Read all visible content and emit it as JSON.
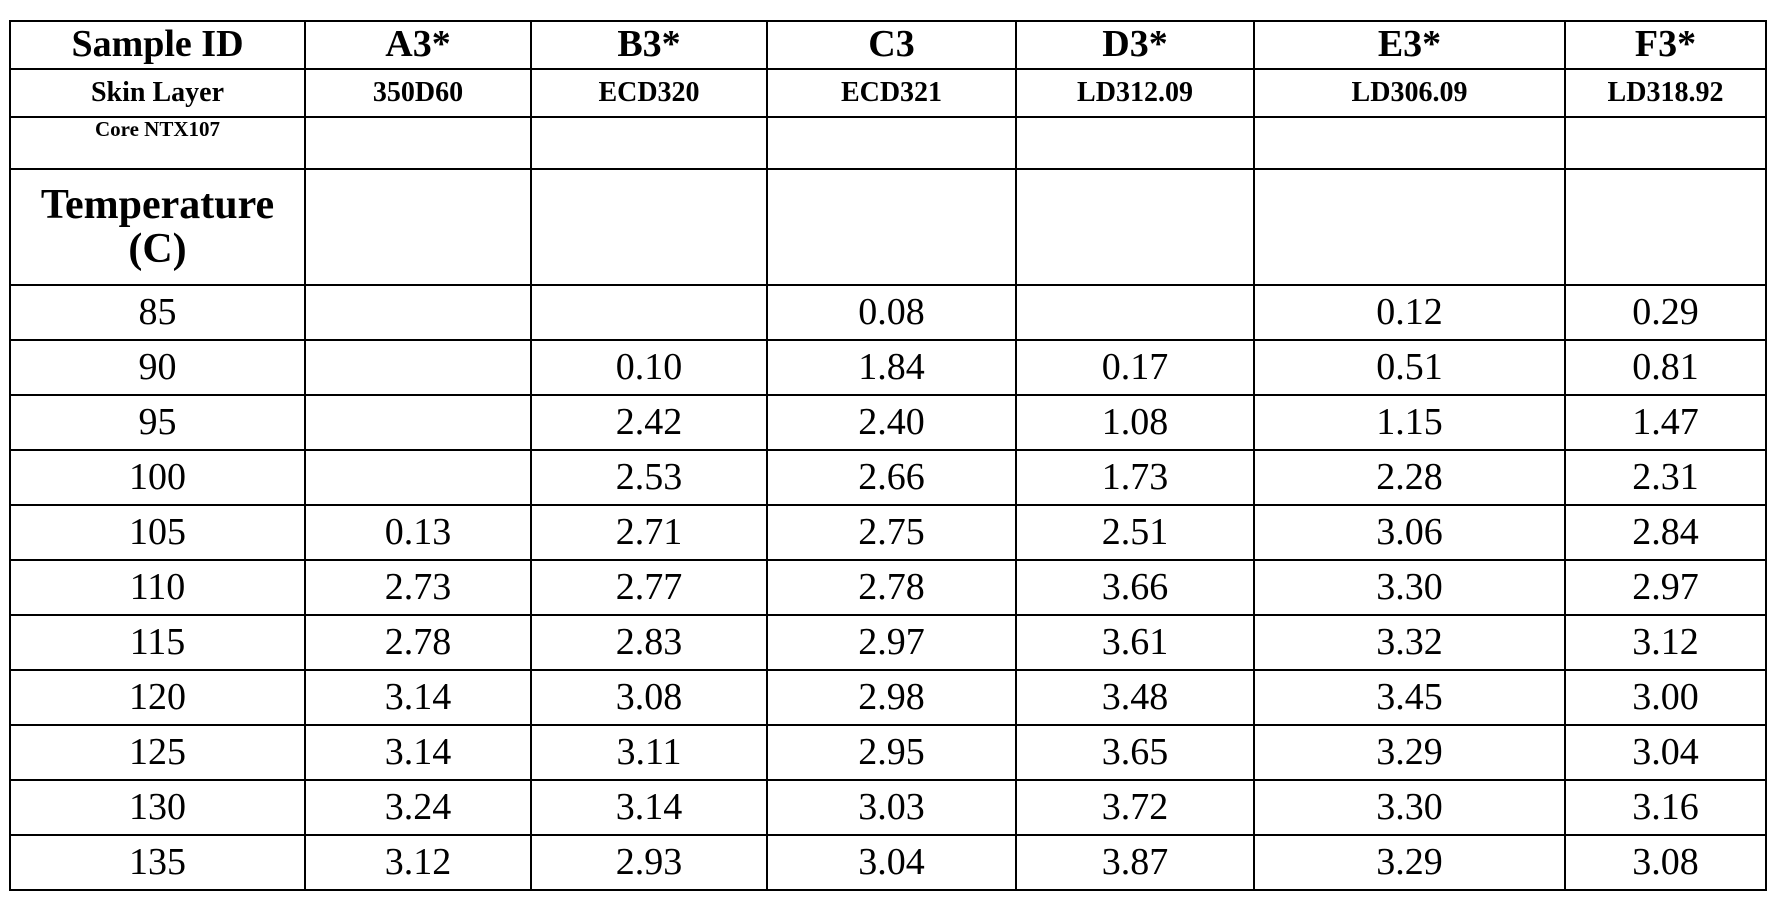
{
  "table": {
    "header": [
      "Sample ID",
      "A3*",
      "B3*",
      "C3",
      "D3*",
      "E3*",
      "F3*"
    ],
    "skin_layer": [
      "Skin Layer",
      "350D60",
      "ECD320",
      "ECD321",
      "LD312.09",
      "LD306.09",
      "LD318.92"
    ],
    "core": "Core NTX107",
    "temperature_label": "Temperature (C)",
    "rows": [
      [
        "85",
        null,
        null,
        "0.08",
        null,
        "0.12",
        "0.29"
      ],
      [
        "90",
        null,
        "0.10",
        "1.84",
        "0.17",
        "0.51",
        "0.81"
      ],
      [
        "95",
        null,
        "2.42",
        "2.40",
        "1.08",
        "1.15",
        "1.47"
      ],
      [
        "100",
        null,
        "2.53",
        "2.66",
        "1.73",
        "2.28",
        "2.31"
      ],
      [
        "105",
        "0.13",
        "2.71",
        "2.75",
        "2.51",
        "3.06",
        "2.84"
      ],
      [
        "110",
        "2.73",
        "2.77",
        "2.78",
        "3.66",
        "3.30",
        "2.97"
      ],
      [
        "115",
        "2.78",
        "2.83",
        "2.97",
        "3.61",
        "3.32",
        "3.12"
      ],
      [
        "120",
        "3.14",
        "3.08",
        "2.98",
        "3.48",
        "3.45",
        "3.00"
      ],
      [
        "125",
        "3.14",
        "3.11",
        "2.95",
        "3.65",
        "3.29",
        "3.04"
      ],
      [
        "130",
        "3.24",
        "3.14",
        "3.03",
        "3.72",
        "3.30",
        "3.16"
      ],
      [
        "135",
        "3.12",
        "2.93",
        "3.04",
        "3.87",
        "3.29",
        "3.08"
      ]
    ]
  }
}
